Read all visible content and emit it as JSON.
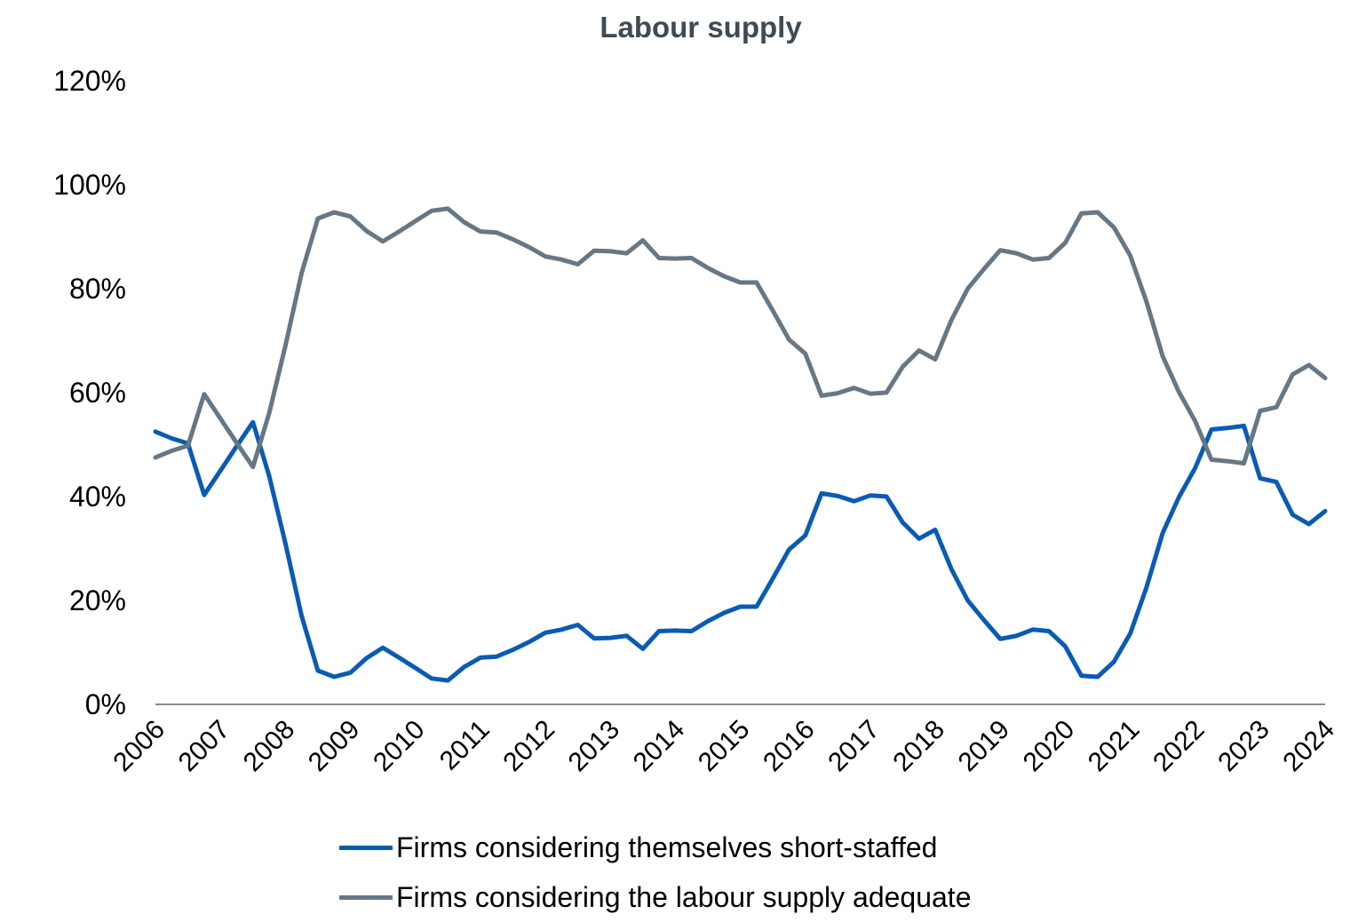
{
  "chart_data": {
    "type": "line",
    "title": "Labour supply",
    "xlabel": "",
    "ylabel": "",
    "ylim": [
      0,
      120
    ],
    "yticks": [
      "0%",
      "20%",
      "40%",
      "60%",
      "80%",
      "100%",
      "120%"
    ],
    "x_tick_labels": [
      "2006",
      "2007",
      "2008",
      "2009",
      "2010",
      "2011",
      "2012",
      "2013",
      "2014",
      "2015",
      "2016",
      "2017",
      "2018",
      "2019",
      "2020",
      "2021",
      "2022",
      "2023",
      "2024"
    ],
    "grid": false,
    "legend_position": "bottom",
    "x": [
      2006.0,
      2006.25,
      2006.5,
      2006.75,
      2007.0,
      2007.25,
      2007.5,
      2007.75,
      2008.0,
      2008.25,
      2008.5,
      2008.75,
      2009.0,
      2009.25,
      2009.5,
      2009.75,
      2010.0,
      2010.25,
      2010.5,
      2010.75,
      2011.0,
      2011.25,
      2011.5,
      2011.75,
      2012.0,
      2012.25,
      2012.5,
      2012.75,
      2013.0,
      2013.25,
      2013.5,
      2013.75,
      2014.0,
      2014.25,
      2014.5,
      2014.75,
      2015.0,
      2015.25,
      2015.5,
      2015.75,
      2016.0,
      2016.25,
      2016.5,
      2016.75,
      2017.0,
      2017.25,
      2017.5,
      2017.75,
      2018.0,
      2018.25,
      2018.5,
      2018.75,
      2019.0,
      2019.25,
      2019.5,
      2019.75,
      2020.0,
      2020.25,
      2020.5,
      2020.75,
      2021.0,
      2021.25,
      2021.5,
      2021.75,
      2022.0,
      2022.25,
      2022.5,
      2022.75,
      2023.0,
      2023.25,
      2023.5,
      2023.75,
      2024.0
    ],
    "series": [
      {
        "name": "Firms considering themselves short-staffed",
        "color": "#0a5bb5",
        "values": [
          52.5,
          51.2,
          50.2,
          40.3,
          45.0,
          49.7,
          54.3,
          44.0,
          31.0,
          17.0,
          6.5,
          5.3,
          6.1,
          8.9,
          10.9,
          9.0,
          7.0,
          5.0,
          4.6,
          7.2,
          9.0,
          9.2,
          10.5,
          12.0,
          13.8,
          14.4,
          15.3,
          12.7,
          12.8,
          13.2,
          10.7,
          14.1,
          14.2,
          14.1,
          16.0,
          17.6,
          18.8,
          18.8,
          24.2,
          29.8,
          32.5,
          40.6,
          40.1,
          39.1,
          40.2,
          40.0,
          35.0,
          31.9,
          33.6,
          26.0,
          20.0,
          16.2,
          12.6,
          13.2,
          14.4,
          14.1,
          11.2,
          5.5,
          5.3,
          8.2,
          13.6,
          22.5,
          33.0,
          39.9,
          45.5,
          52.9,
          53.2,
          53.6,
          43.5,
          42.8,
          36.5,
          34.7,
          37.2
        ]
      },
      {
        "name": "Firms considering the labour supply adequate",
        "color": "#667785",
        "values": [
          47.5,
          48.8,
          49.8,
          59.7,
          55.0,
          50.3,
          45.7,
          56.0,
          69.0,
          83.0,
          93.5,
          94.7,
          93.9,
          91.1,
          89.1,
          91.0,
          93.0,
          95.0,
          95.4,
          92.8,
          91.0,
          90.8,
          89.5,
          88.0,
          86.2,
          85.6,
          84.7,
          87.3,
          87.2,
          86.8,
          89.3,
          85.9,
          85.8,
          85.9,
          84.0,
          82.4,
          81.2,
          81.2,
          75.8,
          70.2,
          67.5,
          59.4,
          59.9,
          60.9,
          59.8,
          60.0,
          65.0,
          68.1,
          66.4,
          74.0,
          80.0,
          83.8,
          87.4,
          86.8,
          85.6,
          85.9,
          88.8,
          94.5,
          94.7,
          91.8,
          86.4,
          77.5,
          67.0,
          60.1,
          54.5,
          47.1,
          46.8,
          46.4,
          56.5,
          57.2,
          63.5,
          65.3,
          62.8
        ]
      }
    ]
  }
}
